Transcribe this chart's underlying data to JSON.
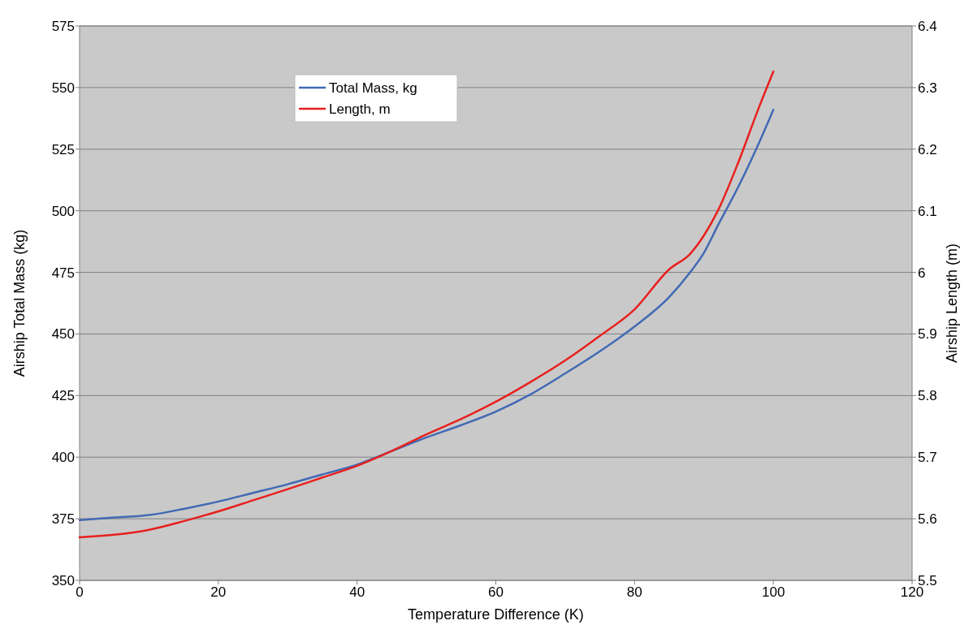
{
  "chart_data": {
    "type": "line",
    "xlabel": "Temperature Difference (K)",
    "ylabel": "Airship Total Mass (kg)",
    "y2label": "Airship Length (m)",
    "xlim": [
      0,
      120
    ],
    "xticks": [
      0,
      20,
      40,
      60,
      80,
      100,
      120
    ],
    "ylim": [
      350,
      575
    ],
    "yticks": [
      350,
      375,
      400,
      425,
      450,
      475,
      500,
      525,
      550,
      575
    ],
    "y2lim": [
      5.5,
      6.4
    ],
    "y2ticks": [
      5.5,
      5.6,
      5.7,
      5.8,
      5.9,
      {
        "value": 6,
        "label": "6"
      },
      6.1,
      6.2,
      6.3,
      6.4
    ],
    "grid": "y",
    "legend": "top left",
    "line_style": "solid",
    "series": [
      {
        "name": "Total Mass, kg",
        "color": "#4169b4",
        "x": [
          0,
          5,
          10,
          15,
          20,
          25,
          30,
          35,
          40,
          45,
          50,
          55,
          60,
          65,
          70,
          75,
          80,
          85,
          88,
          90,
          92,
          95,
          98,
          100
        ],
        "values": [
          374.5,
          375.5,
          376.5,
          379,
          382,
          385.5,
          389,
          393,
          397,
          402.5,
          408,
          413,
          418.5,
          425.5,
          434,
          443,
          453,
          465,
          475,
          483,
          494,
          510,
          528,
          541
        ]
      },
      {
        "name": "Length, m",
        "color": "#e8201e",
        "axis": "y2",
        "x": [
          0,
          5,
          10,
          15,
          20,
          25,
          30,
          35,
          40,
          45,
          50,
          55,
          60,
          65,
          70,
          75,
          80,
          85,
          88,
          90,
          92,
          95,
          98,
          100
        ],
        "values": [
          5.57,
          5.574,
          5.582,
          5.596,
          5.612,
          5.63,
          5.648,
          5.667,
          5.686,
          5.71,
          5.737,
          5.762,
          5.79,
          5.822,
          5.857,
          5.897,
          5.94,
          6.005,
          6.03,
          6.06,
          6.1,
          6.18,
          6.27,
          6.326
        ]
      }
    ]
  }
}
